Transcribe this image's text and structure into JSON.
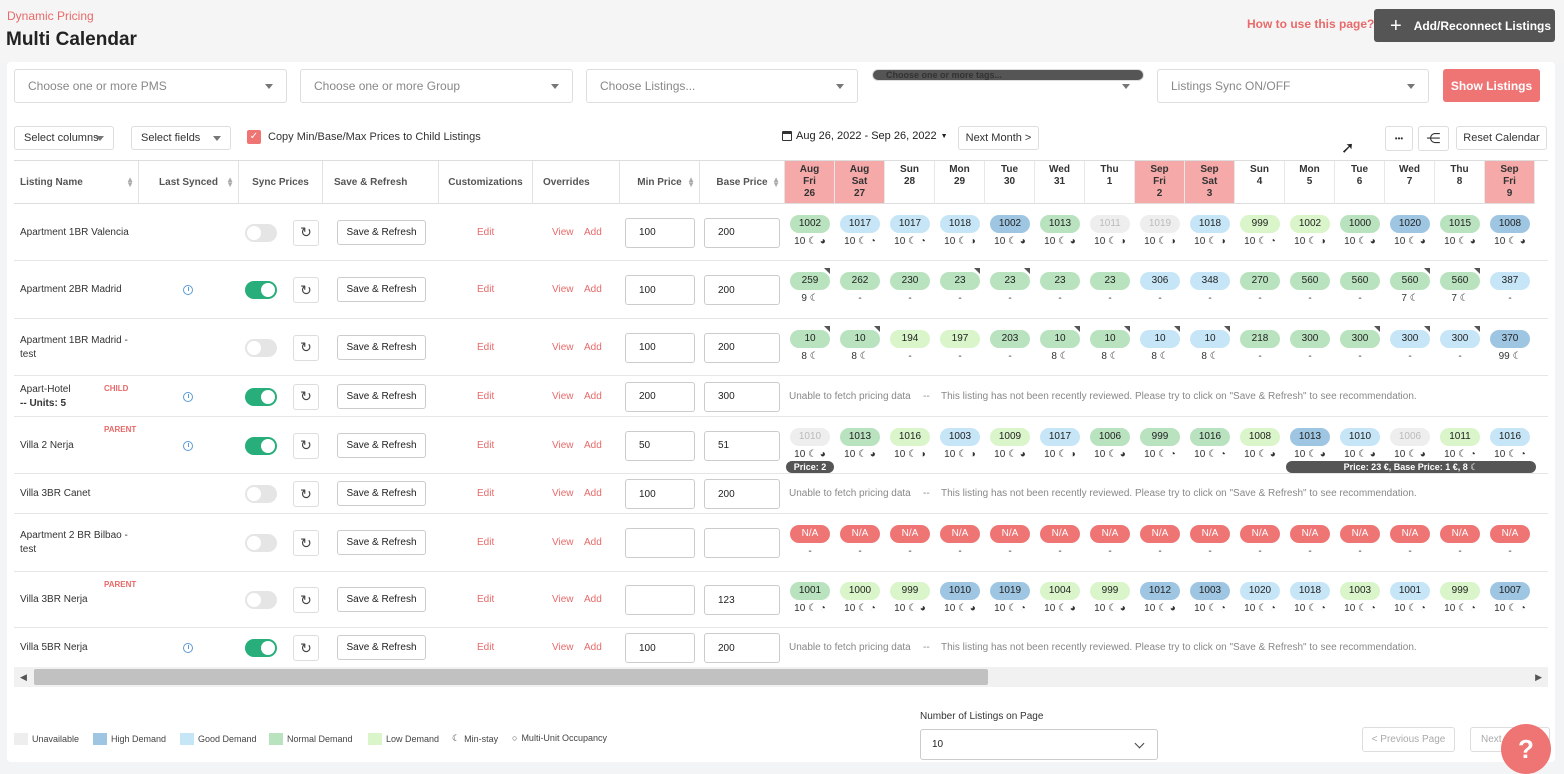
{
  "header": {
    "breadcrumb": "Dynamic Pricing",
    "title": "Multi Calendar",
    "how_to": "How to use this page?",
    "add_button": "Add/Reconnect Listings"
  },
  "filters": {
    "pms": "Choose one or more PMS",
    "group": "Choose one or more Group",
    "listings": "Choose Listings...",
    "tags": "Choose one or more tags...",
    "sync": "Listings Sync ON/OFF",
    "show_button": "Show Listings"
  },
  "toolbar": {
    "select_columns": "Select columns",
    "select_fields": "Select fields",
    "copy_label": "Copy Min/Base/Max Prices to Child Listings",
    "date_range": "Aug 26, 2022 - Sep 26, 2022",
    "next_month": "Next Month >",
    "more": "•••",
    "tree": "⋲",
    "reset": "Reset Calendar"
  },
  "columns": {
    "listing": "Listing Name",
    "last_synced": "Last Synced",
    "sync_prices": "Sync Prices",
    "save_refresh": "Save & Refresh",
    "customizations": "Customizations",
    "overrides": "Overrides",
    "min_price": "Min Price",
    "base_price": "Base Price"
  },
  "days": [
    {
      "l1": "Aug",
      "l2": "Fri",
      "l3": "26",
      "wk": true
    },
    {
      "l1": "Aug",
      "l2": "Sat",
      "l3": "27",
      "wk": true
    },
    {
      "l1": "",
      "l2": "Sun",
      "l3": "28",
      "wk": false
    },
    {
      "l1": "",
      "l2": "Mon",
      "l3": "29",
      "wk": false
    },
    {
      "l1": "",
      "l2": "Tue",
      "l3": "30",
      "wk": false
    },
    {
      "l1": "",
      "l2": "Wed",
      "l3": "31",
      "wk": false
    },
    {
      "l1": "",
      "l2": "Thu",
      "l3": "1",
      "wk": false
    },
    {
      "l1": "Sep",
      "l2": "Fri",
      "l3": "2",
      "wk": true
    },
    {
      "l1": "Sep",
      "l2": "Sat",
      "l3": "3",
      "wk": true
    },
    {
      "l1": "",
      "l2": "Sun",
      "l3": "4",
      "wk": false
    },
    {
      "l1": "",
      "l2": "Mon",
      "l3": "5",
      "wk": false
    },
    {
      "l1": "",
      "l2": "Tue",
      "l3": "6",
      "wk": false
    },
    {
      "l1": "",
      "l2": "Wed",
      "l3": "7",
      "wk": false
    },
    {
      "l1": "",
      "l2": "Thu",
      "l3": "8",
      "wk": false
    },
    {
      "l1": "Sep",
      "l2": "Fri",
      "l3": "9",
      "wk": true
    }
  ],
  "common": {
    "save_label": "Save & Refresh",
    "edit": "Edit",
    "view": "View",
    "add": "Add",
    "refresh_icon": "↻"
  },
  "rows": [
    {
      "name": "Apartment 1BR Valencia",
      "tag": "",
      "units": "",
      "synced": false,
      "sync_on": false,
      "min": "100",
      "base": "200",
      "cells": [
        [
          "1002",
          "n",
          "10 ☾ ◕",
          0
        ],
        [
          "1017",
          "g",
          "10 ☾ ◔",
          0
        ],
        [
          "1017",
          "g",
          "10 ☾ ◔",
          0
        ],
        [
          "1018",
          "g",
          "10 ☾ ◑",
          0
        ],
        [
          "1002",
          "h",
          "10 ☾ ◕",
          0
        ],
        [
          "1013",
          "n",
          "10 ☾ ◕",
          0
        ],
        [
          "1011",
          "u",
          "10 ☾ ◑",
          0
        ],
        [
          "1019",
          "u",
          "10 ☾ ◑",
          0
        ],
        [
          "1018",
          "g",
          "10 ☾ ◑",
          0
        ],
        [
          "999",
          "l",
          "10 ☾ ◔",
          0
        ],
        [
          "1002",
          "l",
          "10 ☾ ◑",
          0
        ],
        [
          "1000",
          "n",
          "10 ☾ ◕",
          0
        ],
        [
          "1020",
          "h",
          "10 ☾ ◕",
          0
        ],
        [
          "1015",
          "n",
          "10 ☾ ◕",
          0
        ],
        [
          "1008",
          "h",
          "10 ☾ ◕",
          0
        ]
      ]
    },
    {
      "name": "Apartment 2BR Madrid",
      "tag": "",
      "units": "",
      "synced": true,
      "sync_on": true,
      "min": "100",
      "base": "200",
      "cells": [
        [
          "259",
          "n",
          "9 ☾",
          1
        ],
        [
          "262",
          "n",
          "-",
          0
        ],
        [
          "230",
          "n",
          "-",
          0
        ],
        [
          "23",
          "n",
          "-",
          1
        ],
        [
          "23",
          "n",
          "-",
          1
        ],
        [
          "23",
          "n",
          "-",
          0
        ],
        [
          "23",
          "n",
          "-",
          0
        ],
        [
          "306",
          "g",
          "-",
          0
        ],
        [
          "348",
          "g",
          "-",
          0
        ],
        [
          "270",
          "n",
          "-",
          0
        ],
        [
          "560",
          "n",
          "-",
          0
        ],
        [
          "560",
          "n",
          "-",
          0
        ],
        [
          "560",
          "n",
          "7 ☾",
          1
        ],
        [
          "560",
          "n",
          "7 ☾",
          1
        ],
        [
          "387",
          "g",
          "-",
          0
        ]
      ]
    },
    {
      "name": "Apartment 1BR Madrid - test",
      "tag": "",
      "units": "",
      "synced": false,
      "sync_on": false,
      "min": "100",
      "base": "200",
      "cells": [
        [
          "10",
          "n",
          "8 ☾",
          1
        ],
        [
          "10",
          "n",
          "8 ☾",
          1
        ],
        [
          "194",
          "l",
          "-",
          0
        ],
        [
          "197",
          "l",
          "-",
          0
        ],
        [
          "203",
          "n",
          "-",
          0
        ],
        [
          "10",
          "n",
          "8 ☾",
          1
        ],
        [
          "10",
          "n",
          "8 ☾",
          1
        ],
        [
          "10",
          "g",
          "8 ☾",
          1
        ],
        [
          "10",
          "g",
          "8 ☾",
          1
        ],
        [
          "218",
          "n",
          "-",
          0
        ],
        [
          "300",
          "n",
          "-",
          0
        ],
        [
          "300",
          "n",
          "-",
          1
        ],
        [
          "300",
          "g",
          "-",
          1
        ],
        [
          "300",
          "g",
          "-",
          1
        ],
        [
          "370",
          "h",
          "99 ☾",
          0
        ]
      ]
    },
    {
      "name": "Apart-Hotel",
      "tag": "CHILD",
      "units": "-- Units: 5",
      "synced": true,
      "sync_on": true,
      "min": "200",
      "base": "300",
      "message": true
    },
    {
      "name": "Villa 2 Nerja",
      "tag": "PARENT",
      "units": "",
      "synced": true,
      "sync_on": true,
      "min": "50",
      "base": "51",
      "cells": [
        [
          "1010",
          "u",
          "10 ☾ ◕",
          0
        ],
        [
          "1013",
          "n",
          "10 ☾ ◕",
          0
        ],
        [
          "1016",
          "l",
          "10 ☾ ◑",
          0
        ],
        [
          "1003",
          "g",
          "10 ☾ ◑",
          0
        ],
        [
          "1009",
          "l",
          "10 ☾ ◕",
          0
        ],
        [
          "1017",
          "g",
          "10 ☾ ◑",
          0
        ],
        [
          "1006",
          "n",
          "10 ☾ ◕",
          0
        ],
        [
          "999",
          "n",
          "10 ☾ ◔",
          0
        ],
        [
          "1016",
          "n",
          "10 ☾ ◔",
          0
        ],
        [
          "1008",
          "l",
          "10 ☾ ◕",
          0
        ],
        [
          "1013",
          "h",
          "10 ☾ ◕",
          0
        ],
        [
          "1010",
          "g",
          "10 ☾ ◕",
          0
        ],
        [
          "1006",
          "u",
          "10 ☾ ◕",
          0
        ],
        [
          "1011",
          "l",
          "10 ☾ ◔",
          0
        ],
        [
          "1016",
          "g",
          "10 ☾ ◔",
          0
        ]
      ]
    },
    {
      "name": "Villa 3BR Canet",
      "tag": "",
      "units": "",
      "synced": false,
      "sync_on": false,
      "min": "100",
      "base": "200",
      "message": true
    },
    {
      "name": "Apartment 2 BR Bilbao - test",
      "tag": "",
      "units": "",
      "synced": false,
      "sync_on": false,
      "min": "",
      "base": "",
      "cells": [
        [
          "N/A",
          "na",
          "-",
          0
        ],
        [
          "N/A",
          "na",
          "-",
          0
        ],
        [
          "N/A",
          "na",
          "-",
          0
        ],
        [
          "N/A",
          "na",
          "-",
          0
        ],
        [
          "N/A",
          "na",
          "-",
          0
        ],
        [
          "N/A",
          "na",
          "-",
          0
        ],
        [
          "N/A",
          "na",
          "-",
          0
        ],
        [
          "N/A",
          "na",
          "-",
          0
        ],
        [
          "N/A",
          "na",
          "-",
          0
        ],
        [
          "N/A",
          "na",
          "-",
          0
        ],
        [
          "N/A",
          "na",
          "-",
          0
        ],
        [
          "N/A",
          "na",
          "-",
          0
        ],
        [
          "N/A",
          "na",
          "-",
          0
        ],
        [
          "N/A",
          "na",
          "-",
          0
        ],
        [
          "N/A",
          "na",
          "-",
          0
        ]
      ]
    },
    {
      "name": "Villa 3BR Nerja",
      "tag": "PARENT",
      "units": "",
      "synced": false,
      "sync_on": false,
      "min": "",
      "base": "123",
      "cells": [
        [
          "1001",
          "n",
          "10 ☾ ◔",
          0
        ],
        [
          "1000",
          "l",
          "10 ☾ ◔",
          0
        ],
        [
          "999",
          "l",
          "10 ☾ ◕",
          0
        ],
        [
          "1010",
          "h",
          "10 ☾ ◕",
          0
        ],
        [
          "1019",
          "h",
          "10 ☾ ◔",
          0
        ],
        [
          "1004",
          "l",
          "10 ☾ ◕",
          0
        ],
        [
          "999",
          "l",
          "10 ☾ ◕",
          0
        ],
        [
          "1012",
          "h",
          "10 ☾ ◕",
          0
        ],
        [
          "1003",
          "h",
          "10 ☾ ◔",
          0
        ],
        [
          "1020",
          "g",
          "10 ☾ ◔",
          0
        ],
        [
          "1018",
          "g",
          "10 ☾ ◔",
          0
        ],
        [
          "1003",
          "l",
          "10 ☾ ◔",
          0
        ],
        [
          "1001",
          "g",
          "10 ☾ ◔",
          0
        ],
        [
          "999",
          "l",
          "10 ☾ ◔",
          0
        ],
        [
          "1007",
          "h",
          "10 ☾ ◔",
          0
        ]
      ]
    },
    {
      "name": "Villa 5BR Nerja",
      "tag": "",
      "units": "",
      "synced": true,
      "sync_on": true,
      "min": "100",
      "base": "200",
      "message": true
    }
  ],
  "messages": {
    "unable": "Unable to fetch pricing data",
    "dash": "--",
    "not_reviewed": "This listing has not been recently reviewed. Please try to click on \"Save & Refresh\" to see recommendation."
  },
  "overlays": {
    "price2": "Price: 2",
    "price_range": "Price: 23 €, Base Price: 1 €, 8 ☾"
  },
  "legend": [
    {
      "label": "Unavailable",
      "color": "#eeeeee"
    },
    {
      "label": "High Demand",
      "color": "#9ec6e2"
    },
    {
      "label": "Good Demand",
      "color": "#c6e6f8"
    },
    {
      "label": "Normal Demand",
      "color": "#b9e2bf"
    },
    {
      "label": "Low Demand",
      "color": "#d9f5c9"
    },
    {
      "label": "Min-stay",
      "icon": "☾"
    },
    {
      "label": "Multi-Unit Occupancy",
      "icon": "○"
    }
  ],
  "footer": {
    "listings_label": "Number of Listings on Page",
    "listings_value": "10",
    "prev": "< Previous Page",
    "next": "Next",
    "help": "?"
  },
  "colors": {
    "accent": "#ef7474",
    "toggle_on": "#27ae7a",
    "weekend": "#f5a9a9"
  }
}
